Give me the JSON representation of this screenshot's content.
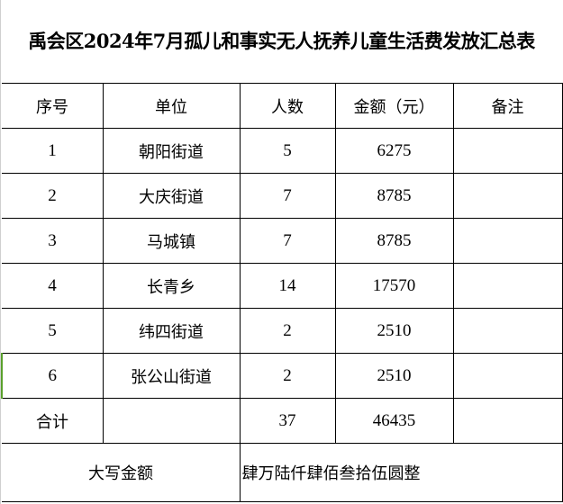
{
  "title": "禹会区2024年7月孤儿和事实无人抚养儿童生活费发放汇总表",
  "headers": [
    "序号",
    "单位",
    "人数",
    "金额（元）",
    "备注"
  ],
  "rows": [
    {
      "no": "1",
      "unit": "朝阳街道",
      "count": "5",
      "amount": "6275",
      "note": ""
    },
    {
      "no": "2",
      "unit": "大庆街道",
      "count": "7",
      "amount": "8785",
      "note": ""
    },
    {
      "no": "3",
      "unit": "马城镇",
      "count": "7",
      "amount": "8785",
      "note": ""
    },
    {
      "no": "4",
      "unit": "长青乡",
      "count": "14",
      "amount": "17570",
      "note": ""
    },
    {
      "no": "5",
      "unit": "纬四街道",
      "count": "2",
      "amount": "2510",
      "note": ""
    },
    {
      "no": "6",
      "unit": "张公山街道",
      "count": "2",
      "amount": "2510",
      "note": ""
    }
  ],
  "total": {
    "label": "合计",
    "count": "37",
    "amount": "46435"
  },
  "capital": {
    "label": "大写金额",
    "value": "肆万陆仟肆佰叁拾伍圆整"
  }
}
